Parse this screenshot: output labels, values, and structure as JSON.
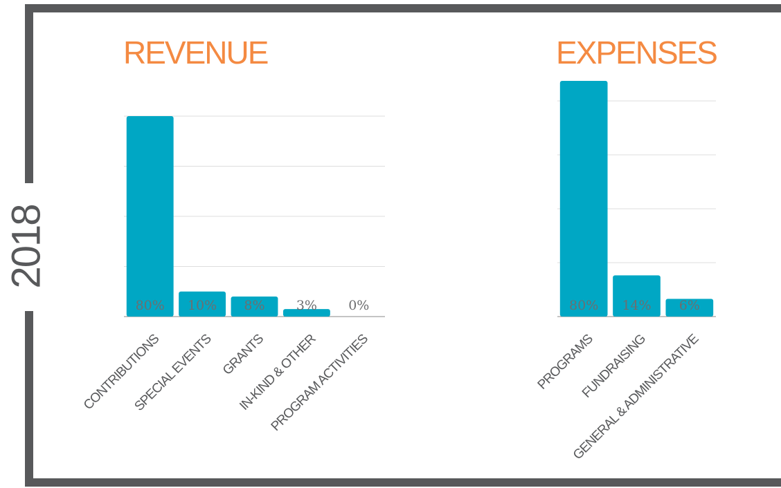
{
  "year": "2018",
  "chart_data": [
    {
      "type": "bar",
      "title": "REVENUE",
      "categories": [
        "CONTRIBUTIONS",
        "SPECIAL EVENTS",
        "GRANTS",
        "IN-KIND & OTHER",
        "PROGRAM ACTIVITIES"
      ],
      "values": [
        80,
        10,
        8,
        3,
        0
      ],
      "value_labels": [
        "80%",
        "10%",
        "8%",
        "3%",
        "0%"
      ],
      "color": "#00a7c4",
      "ylim": [
        0,
        80
      ],
      "yticks": [
        0,
        20,
        40,
        60,
        80
      ],
      "grid": true
    },
    {
      "type": "bar",
      "title": "EXPENSES",
      "categories": [
        "PROGRAMS",
        "FUNDRAISING",
        "GENERAL & ADMINISTRATIVE"
      ],
      "values": [
        80,
        14,
        6
      ],
      "value_labels": [
        "80%",
        "14%",
        "6%"
      ],
      "color": "#00a7c4",
      "ylim": [
        0,
        80
      ],
      "yticks": [
        0,
        18.3,
        36.6,
        54.9,
        73.2
      ],
      "grid": true
    }
  ]
}
